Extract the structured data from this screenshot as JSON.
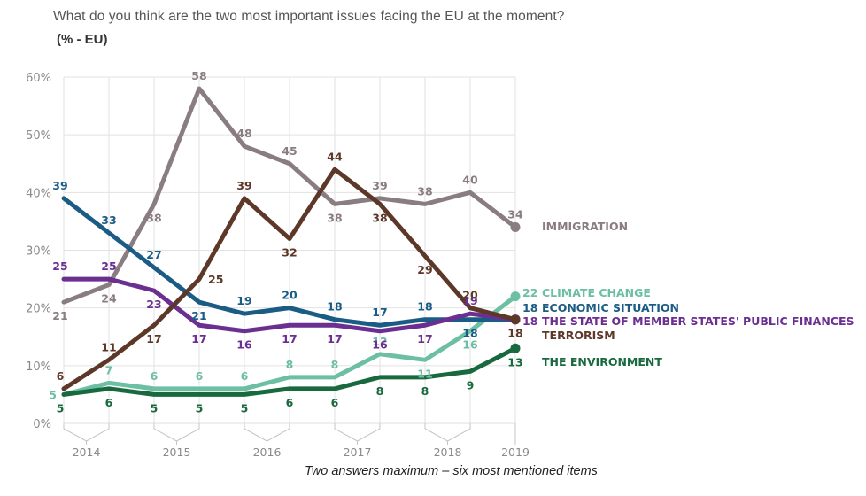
{
  "title": "What do you think are the two most important issues facing the EU at the moment?",
  "subtitle": "(% - EU)",
  "footnote": "Two answers maximum – six most mentioned items",
  "chart_data": {
    "type": "line",
    "title": "What do you think are the two most important issues facing the EU at the moment?",
    "subtitle": "(% - EU)",
    "xlabel": "",
    "ylabel": "",
    "ylim": [
      0,
      60
    ],
    "yticks": [
      "0%",
      "10%",
      "20%",
      "30%",
      "40%",
      "50%",
      "60%"
    ],
    "ytick_values": [
      0,
      10,
      20,
      30,
      40,
      50,
      60
    ],
    "grid": true,
    "point_count": 11,
    "year_groups": [
      {
        "label": "2014",
        "points": [
          0,
          1
        ]
      },
      {
        "label": "2015",
        "points": [
          2,
          3
        ]
      },
      {
        "label": "2016",
        "points": [
          4,
          5
        ]
      },
      {
        "label": "2017",
        "points": [
          6,
          7
        ]
      },
      {
        "label": "2018",
        "points": [
          8,
          9
        ]
      },
      {
        "label": "2019",
        "points": [
          10
        ]
      }
    ],
    "legend_placement": "right",
    "series": [
      {
        "name": "IMMIGRATION",
        "color": "#8a7d82",
        "values": [
          21,
          24,
          38,
          58,
          48,
          45,
          38,
          39,
          38,
          40,
          34
        ],
        "label_pos": [
          "below",
          "below",
          "below",
          "above",
          "above",
          "above",
          "below",
          "above",
          "above",
          "above",
          "above"
        ],
        "end_label": "",
        "legend_label": "IMMIGRATION"
      },
      {
        "name": "CLIMATE CHANGE",
        "color": "#6cbfa3",
        "values": [
          5,
          7,
          6,
          6,
          6,
          8,
          8,
          12,
          11,
          16,
          22
        ],
        "label_pos": [
          "left",
          "above",
          "above",
          "above",
          "above",
          "above",
          "above",
          "above",
          "below",
          "below",
          "right"
        ],
        "end_label": "22",
        "legend_label": "CLIMATE CHANGE"
      },
      {
        "name": "ECONOMIC SITUATION",
        "color": "#1b5c85",
        "values": [
          39,
          33,
          27,
          21,
          19,
          20,
          18,
          17,
          18,
          18,
          18
        ],
        "label_pos": [
          "above",
          "above",
          "above",
          "below",
          "above",
          "above",
          "above",
          "above",
          "above",
          "below",
          "right"
        ],
        "end_label": "18",
        "legend_label": "ECONOMIC SITUATION"
      },
      {
        "name": "THE STATE OF MEMBER STATES' PUBLIC FINANCES",
        "color": "#6a2f91",
        "values": [
          25,
          25,
          23,
          17,
          16,
          17,
          17,
          16,
          17,
          19,
          18
        ],
        "label_pos": [
          "above",
          "above",
          "below",
          "below",
          "below",
          "below",
          "below",
          "below",
          "below",
          "above",
          "right"
        ],
        "end_label": "18",
        "legend_label": "THE STATE OF MEMBER STATES' PUBLIC FINANCES"
      },
      {
        "name": "TERRORISM",
        "color": "#5d3829",
        "values": [
          6,
          11,
          17,
          25,
          39,
          32,
          44,
          38,
          29,
          20,
          18
        ],
        "label_pos": [
          "above",
          "above",
          "below",
          "right",
          "above",
          "below",
          "above",
          "below",
          "below",
          "above",
          "below"
        ],
        "end_label": "",
        "legend_label": "TERRORISM"
      },
      {
        "name": "THE ENVIRONMENT",
        "color": "#19693f",
        "values": [
          5,
          6,
          5,
          5,
          5,
          6,
          6,
          8,
          8,
          9,
          13
        ],
        "label_pos": [
          "below",
          "below",
          "below",
          "below",
          "below",
          "below",
          "below",
          "below",
          "below",
          "below",
          "below"
        ],
        "end_label": "",
        "legend_label": "THE ENVIRONMENT"
      }
    ]
  }
}
